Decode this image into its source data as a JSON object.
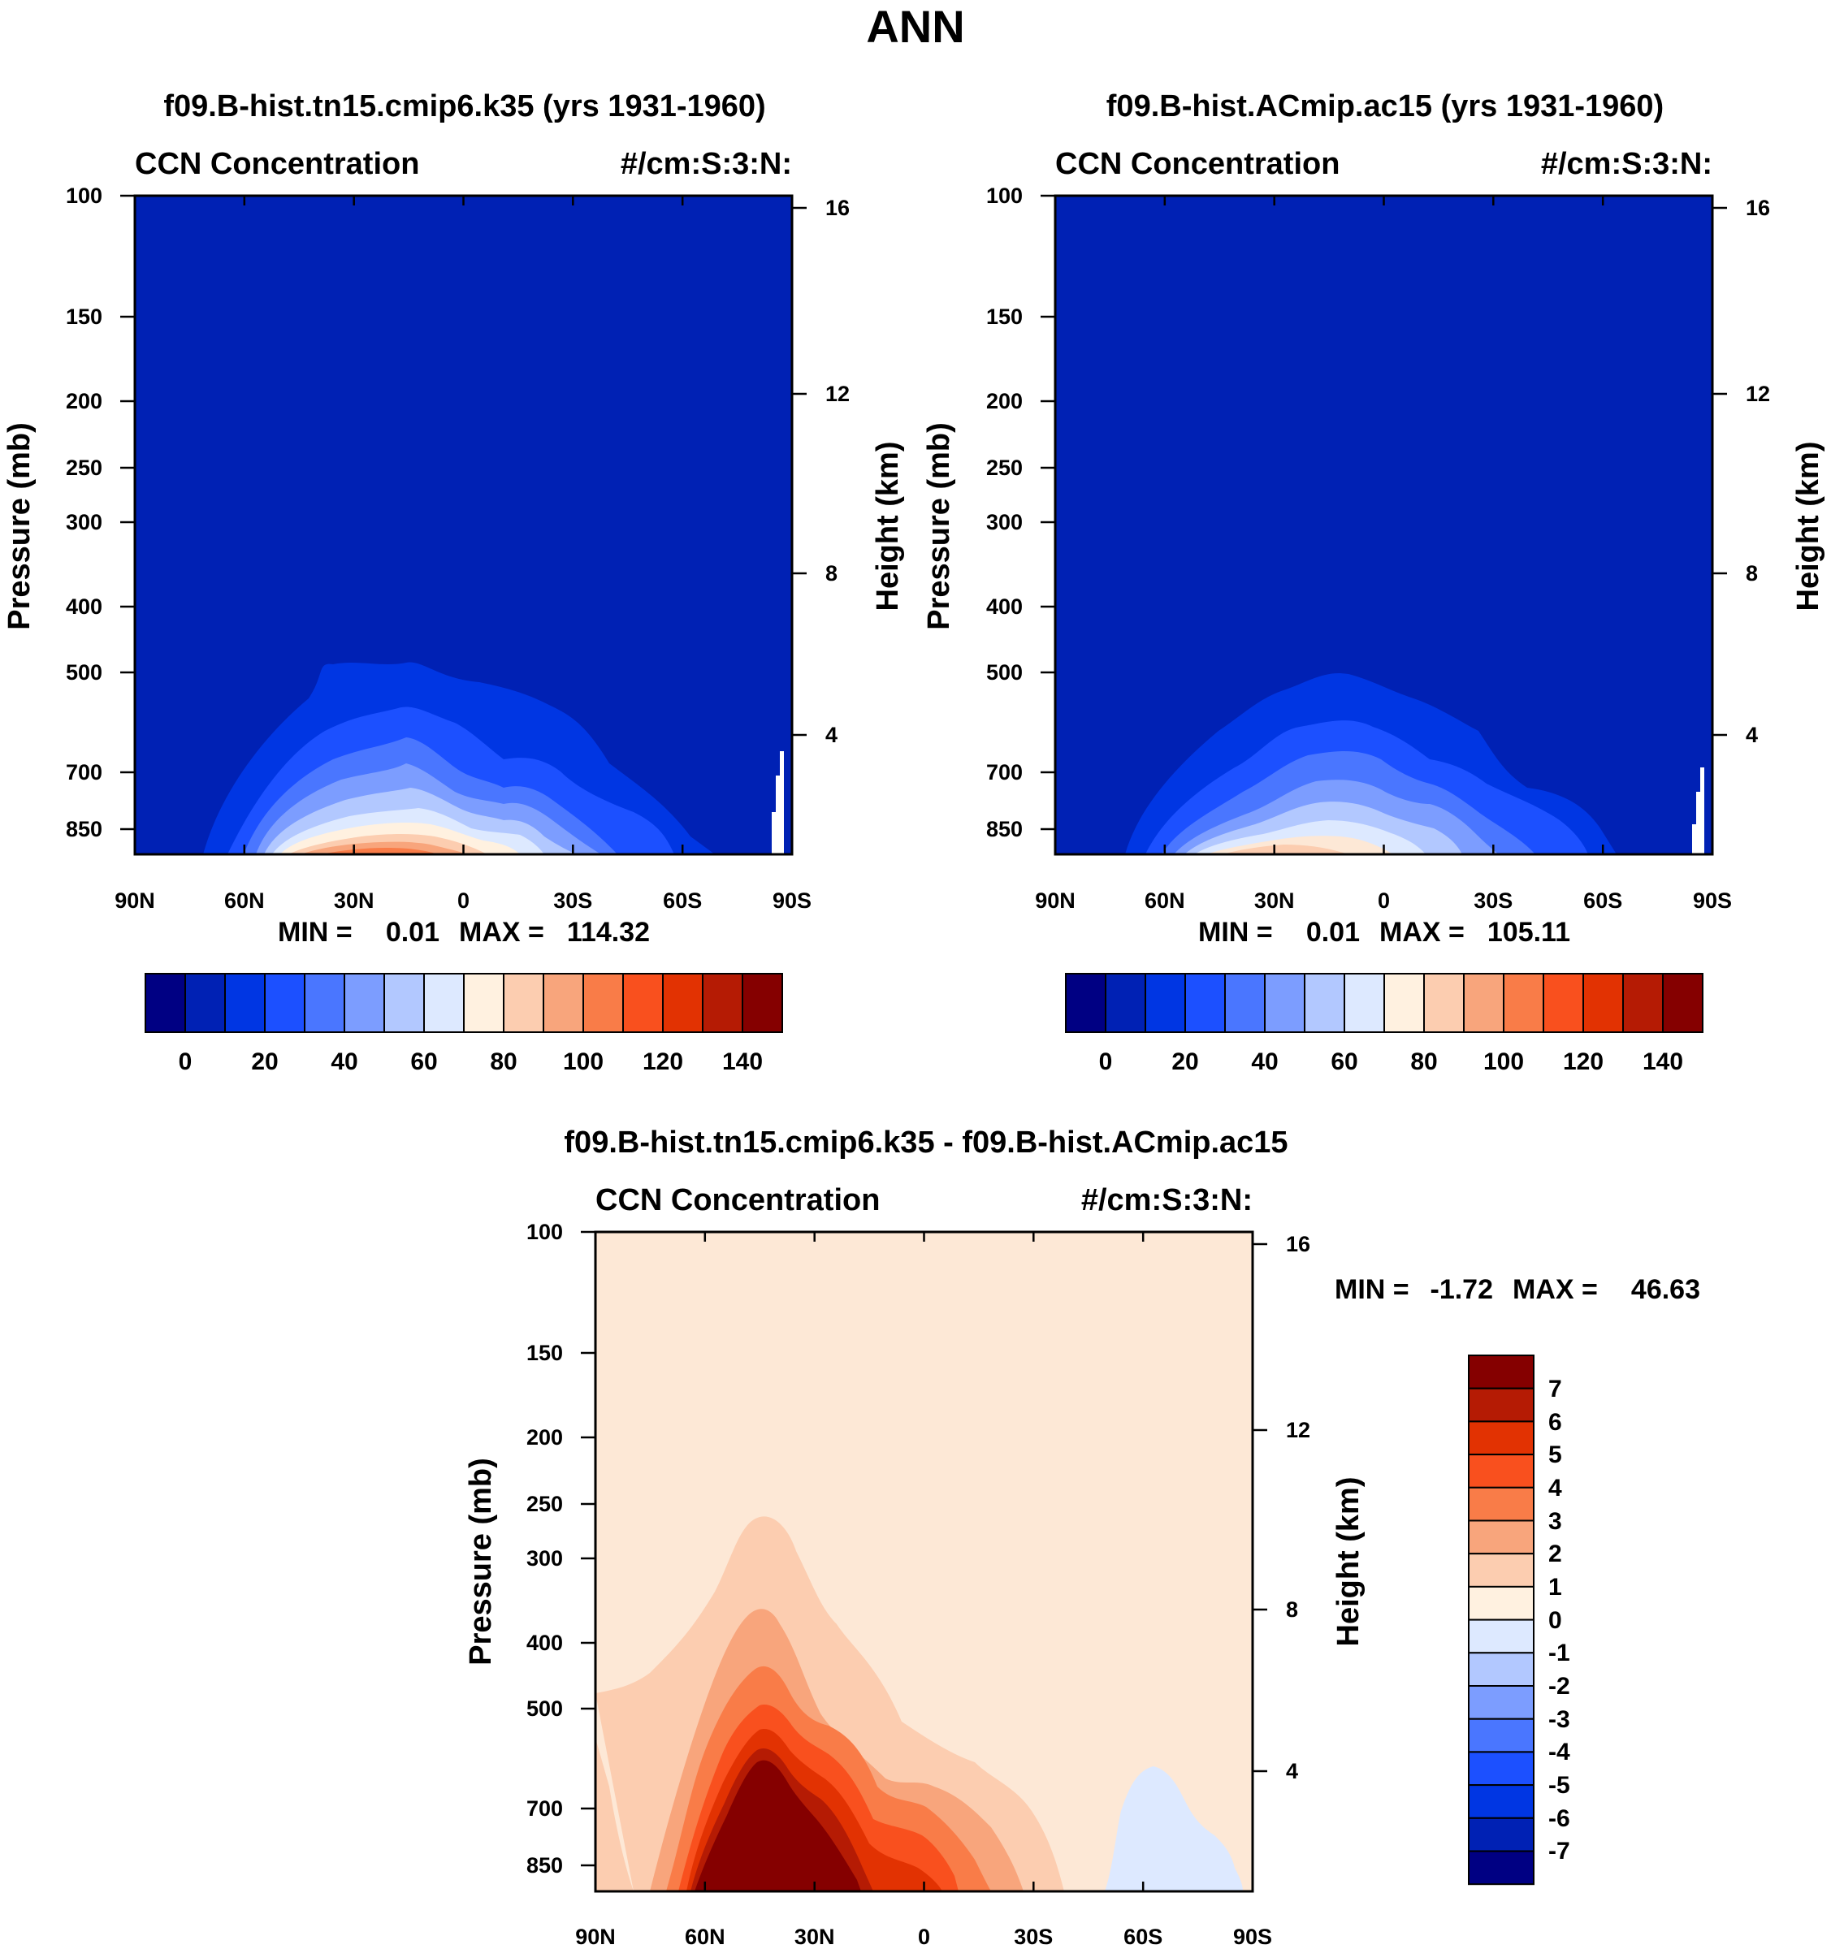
{
  "page_title": "ANN",
  "colors": {
    "cb16": [
      "#000083",
      "#0021b4",
      "#0036e3",
      "#1c50ff",
      "#4a76ff",
      "#7c9dff",
      "#b2c8ff",
      "#dde9ff",
      "#fff1e0",
      "#fccdb0",
      "#f8a57c",
      "#f97c48",
      "#f9501e",
      "#e23202",
      "#b51b04",
      "#850000"
    ],
    "cb15": [
      "#000083",
      "#0021b4",
      "#0036e3",
      "#1c50ff",
      "#4a76ff",
      "#7c9dff",
      "#b2c8ff",
      "#dde9ff",
      "#fde8d6",
      "#fccdb0",
      "#f8a57c",
      "#f97c48",
      "#f9501e",
      "#e23202",
      "#b51b04",
      "#850000"
    ]
  },
  "chart_data": [
    {
      "type": "contour",
      "id": "case1",
      "title": "f09.B-hist.tn15.cmip6.k35 (yrs 1931-1960)",
      "left_label": "CCN Concentration",
      "right_label": "#/cm:S:3:N:",
      "ylabel": "Pressure (mb)",
      "y2label": "Height (km)",
      "x_ticks": [
        "90N",
        "60N",
        "30N",
        "0",
        "30S",
        "60S",
        "90S"
      ],
      "y_ticks": [
        "100",
        "150",
        "200",
        "250",
        "300",
        "400",
        "500",
        "700",
        "850"
      ],
      "y2_ticks": [
        "16",
        "12",
        "8",
        "4"
      ],
      "min_label": "MIN =",
      "min_value": "0.01",
      "max_label": "MAX =",
      "max_value": "114.32",
      "colorbar_labels": [
        "0",
        "20",
        "40",
        "60",
        "80",
        "100",
        "120",
        "140"
      ],
      "ylim": [
        100,
        1000
      ],
      "xlim": [
        90,
        -90
      ]
    },
    {
      "type": "contour",
      "id": "case2",
      "title": "f09.B-hist.ACmip.ac15 (yrs 1931-1960)",
      "left_label": "CCN Concentration",
      "right_label": "#/cm:S:3:N:",
      "ylabel": "Pressure (mb)",
      "y2label": "Height (km)",
      "x_ticks": [
        "90N",
        "60N",
        "30N",
        "0",
        "30S",
        "60S",
        "90S"
      ],
      "y_ticks": [
        "100",
        "150",
        "200",
        "250",
        "300",
        "400",
        "500",
        "700",
        "850"
      ],
      "y2_ticks": [
        "16",
        "12",
        "8",
        "4"
      ],
      "min_label": "MIN =",
      "min_value": "0.01",
      "max_label": "MAX =",
      "max_value": "105.11",
      "colorbar_labels": [
        "0",
        "20",
        "40",
        "60",
        "80",
        "100",
        "120",
        "140"
      ],
      "ylim": [
        100,
        1000
      ],
      "xlim": [
        90,
        -90
      ]
    },
    {
      "type": "contour",
      "id": "diff",
      "title": "f09.B-hist.tn15.cmip6.k35 - f09.B-hist.ACmip.ac15",
      "left_label": "CCN Concentration",
      "right_label": "#/cm:S:3:N:",
      "ylabel": "Pressure (mb)",
      "y2label": "Height (km)",
      "x_ticks": [
        "90N",
        "60N",
        "30N",
        "0",
        "30S",
        "60S",
        "90S"
      ],
      "y_ticks": [
        "100",
        "150",
        "200",
        "250",
        "300",
        "400",
        "500",
        "700",
        "850"
      ],
      "y2_ticks": [
        "16",
        "12",
        "8",
        "4"
      ],
      "min_label": "MIN =",
      "min_value": "-1.72",
      "max_label": "MAX =",
      "max_value": "46.63",
      "colorbar_labels": [
        "7",
        "6",
        "5",
        "4",
        "3",
        "2",
        "1",
        "0",
        "-1",
        "-2",
        "-3",
        "-4",
        "-5",
        "-6",
        "-7"
      ],
      "ylim": [
        100,
        1000
      ],
      "xlim": [
        90,
        -90
      ]
    }
  ]
}
